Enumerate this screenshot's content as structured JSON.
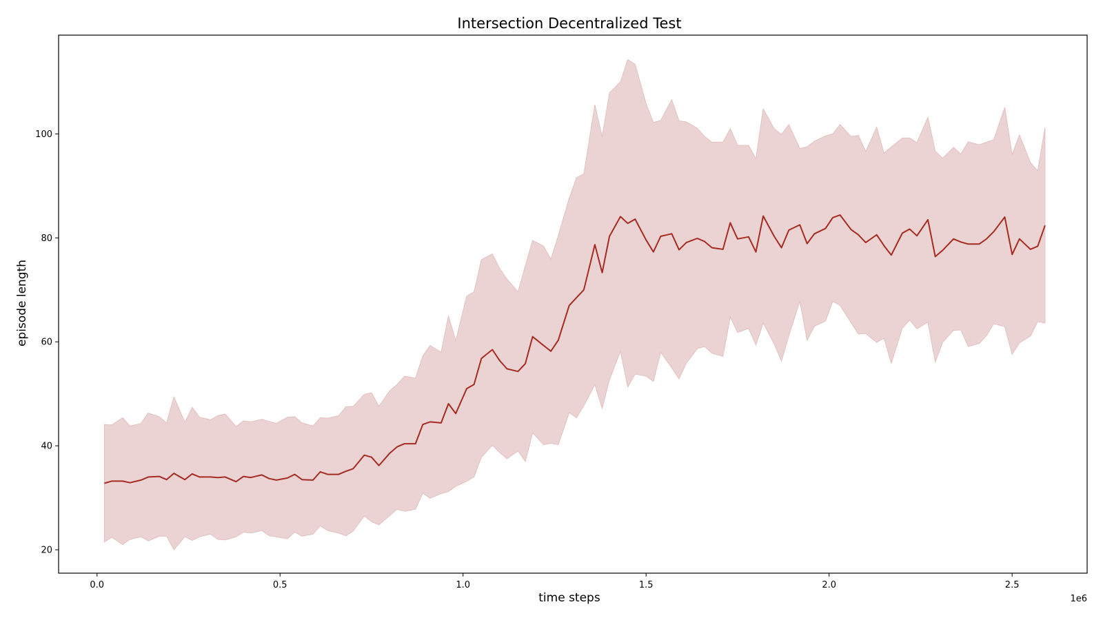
{
  "chart_data": {
    "type": "line",
    "title": "Intersection Decentralized Test",
    "xlabel": "time steps",
    "ylabel": "episode length",
    "x_offset_label": "1e6",
    "xlim": [
      -0.105,
      2.705
    ],
    "ylim": [
      15.5,
      119
    ],
    "x_ticks": [
      0.0,
      0.5,
      1.0,
      1.5,
      2.0,
      2.5
    ],
    "x_tick_labels": [
      "0.0",
      "0.5",
      "1.0",
      "1.5",
      "2.0",
      "2.5"
    ],
    "y_ticks": [
      20,
      40,
      60,
      80,
      100
    ],
    "y_tick_labels": [
      "20",
      "40",
      "60",
      "80",
      "100"
    ],
    "grid": false,
    "colors": {
      "line": "#a52a20",
      "band": "#ecd3d3",
      "band_edge": "#e2c0c0"
    },
    "series": [
      {
        "x": [
          0.02,
          0.04,
          0.07,
          0.09,
          0.12,
          0.14,
          0.17,
          0.19,
          0.21,
          0.24,
          0.26,
          0.28,
          0.31,
          0.33,
          0.35,
          0.38,
          0.4,
          0.42,
          0.45,
          0.47,
          0.49,
          0.52,
          0.54,
          0.56,
          0.59,
          0.61,
          0.63,
          0.66,
          0.68,
          0.7,
          0.73,
          0.75,
          0.77,
          0.8,
          0.82,
          0.84,
          0.87,
          0.89,
          0.91,
          0.94,
          0.96,
          0.98,
          1.01,
          1.03,
          1.05,
          1.08,
          1.1,
          1.12,
          1.15,
          1.17,
          1.19,
          1.22,
          1.24,
          1.26,
          1.29,
          1.31,
          1.33,
          1.36,
          1.38,
          1.4,
          1.43,
          1.45,
          1.47,
          1.5,
          1.52,
          1.54,
          1.57,
          1.59,
          1.61,
          1.64,
          1.66,
          1.68,
          1.71,
          1.73,
          1.75,
          1.78,
          1.8,
          1.82,
          1.85,
          1.87,
          1.89,
          1.92,
          1.94,
          1.96,
          1.99,
          2.01,
          2.03,
          2.06,
          2.08,
          2.1,
          2.13,
          2.15,
          2.17,
          2.2,
          2.22,
          2.24,
          2.27,
          2.29,
          2.31,
          2.34,
          2.36,
          2.38,
          2.41,
          2.43,
          2.45,
          2.48,
          2.5,
          2.52,
          2.55,
          2.57,
          2.59
        ],
        "y": [
          32.8,
          33.2,
          33.2,
          32.9,
          33.4,
          34.0,
          34.1,
          33.5,
          34.7,
          33.5,
          34.6,
          34.0,
          34.0,
          33.9,
          34.0,
          33.1,
          34.1,
          33.9,
          34.4,
          33.7,
          33.4,
          33.8,
          34.5,
          33.5,
          33.4,
          35.0,
          34.5,
          34.5,
          35.1,
          35.6,
          38.2,
          37.8,
          36.2,
          38.6,
          39.8,
          40.4,
          40.4,
          44.1,
          44.6,
          44.4,
          48.1,
          46.2,
          51.0,
          51.8,
          56.8,
          58.5,
          56.4,
          54.8,
          54.3,
          55.8,
          61.0,
          59.3,
          58.2,
          60.3,
          67.0,
          68.5,
          70.0,
          78.7,
          73.3,
          80.3,
          84.1,
          82.8,
          83.6,
          79.6,
          77.3,
          80.3,
          80.8,
          77.7,
          79.1,
          79.9,
          79.3,
          78.1,
          77.8,
          82.9,
          79.8,
          80.2,
          77.3,
          84.2,
          80.3,
          78.1,
          81.5,
          82.5,
          78.9,
          80.8,
          81.8,
          83.9,
          84.4,
          81.6,
          80.6,
          79.1,
          80.6,
          78.5,
          76.7,
          80.9,
          81.7,
          80.4,
          83.5,
          76.4,
          77.6,
          79.8,
          79.2,
          78.8,
          78.8,
          79.8,
          81.2,
          84.0,
          76.8,
          79.8,
          77.8,
          78.4,
          82.4
        ]
      }
    ],
    "band": {
      "upper": [
        44.1,
        44.0,
        45.4,
        43.8,
        44.3,
        46.3,
        45.6,
        44.4,
        49.4,
        44.5,
        47.4,
        45.5,
        45.0,
        45.8,
        46.1,
        43.7,
        44.8,
        44.6,
        45.1,
        44.7,
        44.3,
        45.5,
        45.6,
        44.4,
        43.8,
        45.4,
        45.3,
        45.8,
        47.5,
        47.6,
        49.9,
        50.2,
        47.6,
        50.6,
        51.8,
        53.4,
        53.0,
        57.3,
        59.3,
        58.0,
        65.0,
        60.2,
        68.8,
        69.6,
        75.8,
        76.9,
        74.1,
        72.1,
        69.6,
        74.6,
        79.5,
        78.4,
        75.9,
        80.4,
        87.6,
        91.6,
        92.3,
        105.6,
        99.4,
        107.9,
        110.0,
        114.3,
        113.4,
        105.8,
        102.2,
        102.6,
        106.6,
        102.5,
        102.3,
        101.1,
        99.5,
        98.4,
        98.4,
        101.0,
        97.8,
        97.8,
        95.2,
        104.8,
        101.0,
        99.9,
        101.8,
        97.2,
        97.5,
        98.6,
        99.6,
        100.0,
        101.8,
        99.5,
        99.7,
        96.6,
        101.3,
        96.3,
        97.5,
        99.2,
        99.2,
        98.3,
        103.2,
        96.7,
        95.3,
        97.4,
        96.1,
        98.5,
        97.9,
        98.4,
        98.9,
        105.1,
        96.0,
        99.8,
        94.5,
        92.9,
        101.2
      ]
    }
  }
}
